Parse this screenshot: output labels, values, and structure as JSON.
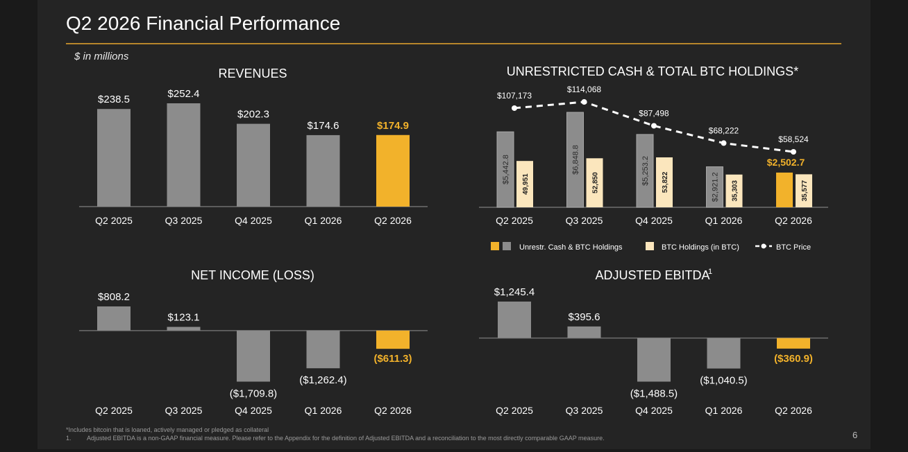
{
  "slide": {
    "title": "Q2 2026 Financial Performance",
    "units": "$ in millions",
    "page_number": "6",
    "footnotes": {
      "asterisk": "*Includes bitcoin that is loaned, actively managed or pledged as collateral",
      "note1_number": "1.",
      "note1_text": "Adjusted EBITDA is a non-GAAP financial measure. Please refer to the Appendix for the definition of Adjusted EBITDA and a reconciliation to the most directly comparable GAAP measure."
    }
  },
  "colors": {
    "background": "#242424",
    "accent_gold": "#f2b22b",
    "bar_gray": "#8c8c8c",
    "btc_cream": "#fbe6bd",
    "axis_line": "#6e6e6e",
    "rule": "#b8862b"
  },
  "chart_data": [
    {
      "id": "revenues",
      "type": "bar",
      "title": "REVENUES",
      "categories": [
        "Q2 2025",
        "Q3 2025",
        "Q4 2025",
        "Q1 2026",
        "Q2 2026"
      ],
      "values": [
        238.5,
        252.4,
        202.3,
        174.6,
        174.9
      ],
      "labels": [
        "$238.5",
        "$252.4",
        "$202.3",
        "$174.6",
        "$174.9"
      ],
      "highlight_index": 4,
      "ylim": [
        0,
        252.4
      ]
    },
    {
      "id": "cash_btc",
      "type": "bar",
      "title": "UNRESTRICTED CASH & TOTAL BTC HOLDINGS",
      "title_suffix": "*",
      "categories": [
        "Q2 2025",
        "Q3 2025",
        "Q4 2025",
        "Q1 2026",
        "Q2 2026"
      ],
      "series": [
        {
          "name": "Unrestr. Cash & BTC Holdings",
          "values": [
            5442.8,
            6848.8,
            5253.2,
            2921.2,
            2502.7
          ],
          "labels": [
            "$5,442.8",
            "$6,848.8",
            "$5,253.2",
            "$2,921.2",
            "$2,502.7"
          ],
          "highlight_index": 4
        },
        {
          "name": "BTC Holdings (in BTC)",
          "values": [
            49951,
            52850,
            53822,
            35303,
            35577
          ],
          "labels": [
            "49,951",
            "52,850",
            "53,822",
            "35,303",
            "35,577"
          ]
        },
        {
          "name": "BTC Price",
          "type": "line",
          "values": [
            107173,
            114068,
            87498,
            68222,
            58524
          ],
          "labels": [
            "$107,173",
            "$114,068",
            "$87,498",
            "$68,222",
            "$58,524"
          ]
        }
      ],
      "legend_placement": "bottom"
    },
    {
      "id": "net_income",
      "type": "bar",
      "title": "NET INCOME (LOSS)",
      "categories": [
        "Q2 2025",
        "Q3 2025",
        "Q4 2025",
        "Q1 2026",
        "Q2 2026"
      ],
      "values": [
        808.2,
        123.1,
        -1709.8,
        -1262.4,
        -611.3
      ],
      "labels": [
        "$808.2",
        "$123.1",
        "($1,709.8)",
        "($1,262.4)",
        "($611.3)"
      ],
      "highlight_index": 4,
      "ylim": [
        -1709.8,
        808.2
      ]
    },
    {
      "id": "adj_ebitda",
      "type": "bar",
      "title": "ADJUSTED EBITDA",
      "title_superscript": "1",
      "categories": [
        "Q2 2025",
        "Q3 2025",
        "Q4 2025",
        "Q1 2026",
        "Q2 2026"
      ],
      "values": [
        1245.4,
        395.6,
        -1488.5,
        -1040.5,
        -360.9
      ],
      "labels": [
        "$1,245.4",
        "$395.6",
        "($1,488.5)",
        "($1,040.5)",
        "($360.9)"
      ],
      "highlight_index": 4,
      "ylim": [
        -1488.5,
        1245.4
      ]
    }
  ]
}
